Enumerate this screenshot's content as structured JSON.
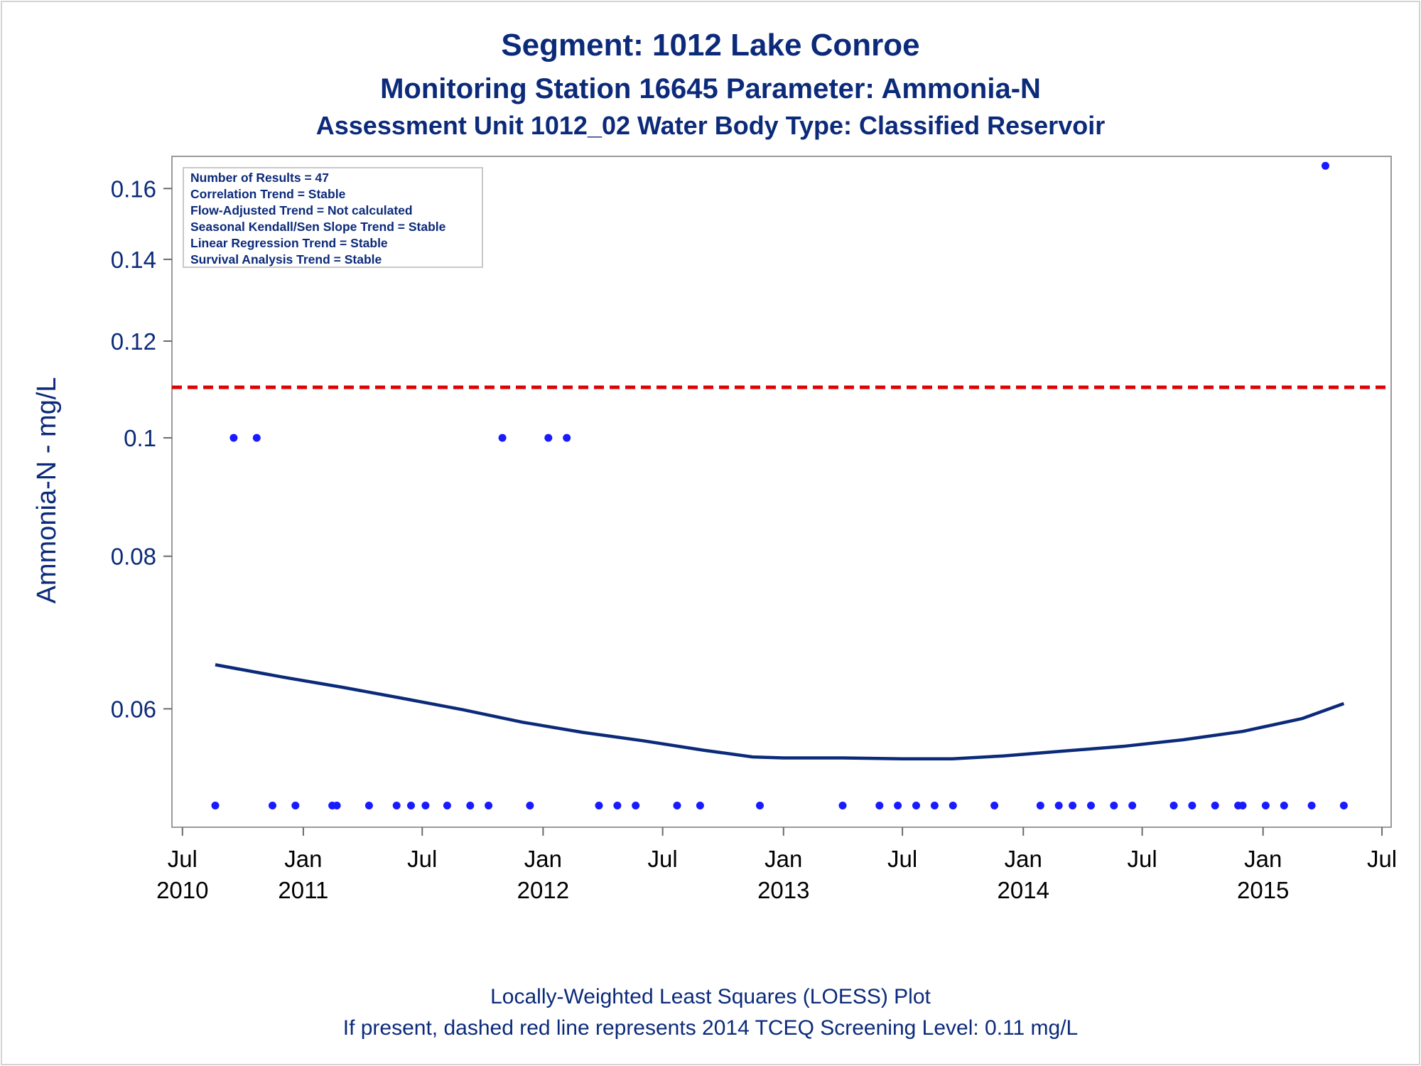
{
  "chart_data": {
    "type": "scatter",
    "title": "Segment: 1012  Lake Conroe",
    "subtitle_1": "Monitoring Station 16645 Parameter: Ammonia-N",
    "subtitle_2": "Assessment Unit 1012_02   Water Body Type: Classified Reservoir",
    "ylabel": "Ammonia-N - mg/L",
    "xlabel": "",
    "y_scale": "log",
    "ylim": [
      0.048,
      0.17
    ],
    "xlim": [
      "2010-06-15",
      "2015-07-15"
    ],
    "y_ticks": [
      {
        "value": 0.06,
        "label": "0.06"
      },
      {
        "value": 0.08,
        "label": "0.08"
      },
      {
        "value": 0.1,
        "label": "0.1"
      },
      {
        "value": 0.12,
        "label": "0.12"
      },
      {
        "value": 0.14,
        "label": "0.14"
      },
      {
        "value": 0.16,
        "label": "0.16"
      }
    ],
    "x_ticks": [
      {
        "date": "2010-07-01",
        "line1": "Jul",
        "line2": "2010"
      },
      {
        "date": "2011-01-01",
        "line1": "Jan",
        "line2": "2011"
      },
      {
        "date": "2011-07-01",
        "line1": "Jul",
        "line2": ""
      },
      {
        "date": "2012-01-01",
        "line1": "Jan",
        "line2": "2012"
      },
      {
        "date": "2012-07-01",
        "line1": "Jul",
        "line2": ""
      },
      {
        "date": "2013-01-01",
        "line1": "Jan",
        "line2": "2013"
      },
      {
        "date": "2013-07-01",
        "line1": "Jul",
        "line2": ""
      },
      {
        "date": "2014-01-01",
        "line1": "Jan",
        "line2": "2014"
      },
      {
        "date": "2014-07-01",
        "line1": "Jul",
        "line2": ""
      },
      {
        "date": "2015-01-01",
        "line1": "Jan",
        "line2": "2015"
      },
      {
        "date": "2015-07-01",
        "line1": "Jul",
        "line2": ""
      }
    ],
    "grid": false,
    "stats_box_position": "top-left",
    "stats": [
      "Number of Results = 47",
      "Correlation Trend = Stable",
      "Flow-Adjusted Trend = Not calculated",
      "Seasonal Kendall/Sen Slope Trend = Stable",
      "Linear Regression Trend = Stable",
      "Survival Analysis Trend = Stable"
    ],
    "screening_level": {
      "value": 0.11,
      "color": "#e00000",
      "style": "dashed"
    },
    "point_color": "#1a1aff",
    "loess_color": "#0b2a7a",
    "points": [
      {
        "x": "2010-08-20",
        "y": 0.05
      },
      {
        "x": "2010-09-17",
        "y": 0.1
      },
      {
        "x": "2010-10-22",
        "y": 0.1
      },
      {
        "x": "2010-11-15",
        "y": 0.05
      },
      {
        "x": "2010-12-20",
        "y": 0.05
      },
      {
        "x": "2011-02-14",
        "y": 0.05
      },
      {
        "x": "2011-02-21",
        "y": 0.05
      },
      {
        "x": "2011-04-11",
        "y": 0.05
      },
      {
        "x": "2011-05-23",
        "y": 0.05
      },
      {
        "x": "2011-06-14",
        "y": 0.05
      },
      {
        "x": "2011-07-06",
        "y": 0.05
      },
      {
        "x": "2011-08-08",
        "y": 0.05
      },
      {
        "x": "2011-09-12",
        "y": 0.05
      },
      {
        "x": "2011-10-10",
        "y": 0.05
      },
      {
        "x": "2011-10-31",
        "y": 0.1
      },
      {
        "x": "2011-12-12",
        "y": 0.05
      },
      {
        "x": "2012-01-09",
        "y": 0.1
      },
      {
        "x": "2012-02-06",
        "y": 0.1
      },
      {
        "x": "2012-03-26",
        "y": 0.05
      },
      {
        "x": "2012-04-23",
        "y": 0.05
      },
      {
        "x": "2012-05-21",
        "y": 0.05
      },
      {
        "x": "2012-07-23",
        "y": 0.05
      },
      {
        "x": "2012-08-27",
        "y": 0.05
      },
      {
        "x": "2012-11-26",
        "y": 0.05
      },
      {
        "x": "2013-04-01",
        "y": 0.05
      },
      {
        "x": "2013-05-27",
        "y": 0.05
      },
      {
        "x": "2013-06-24",
        "y": 0.05
      },
      {
        "x": "2013-07-22",
        "y": 0.05
      },
      {
        "x": "2013-08-19",
        "y": 0.05
      },
      {
        "x": "2013-09-16",
        "y": 0.05
      },
      {
        "x": "2013-11-18",
        "y": 0.05
      },
      {
        "x": "2014-01-27",
        "y": 0.05
      },
      {
        "x": "2014-02-24",
        "y": 0.05
      },
      {
        "x": "2014-03-17",
        "y": 0.05
      },
      {
        "x": "2014-04-14",
        "y": 0.05
      },
      {
        "x": "2014-05-19",
        "y": 0.05
      },
      {
        "x": "2014-06-16",
        "y": 0.05
      },
      {
        "x": "2014-08-18",
        "y": 0.05
      },
      {
        "x": "2014-09-15",
        "y": 0.05
      },
      {
        "x": "2014-10-20",
        "y": 0.05
      },
      {
        "x": "2014-11-24",
        "y": 0.05
      },
      {
        "x": "2014-12-01",
        "y": 0.05
      },
      {
        "x": "2015-01-05",
        "y": 0.05
      },
      {
        "x": "2015-02-02",
        "y": 0.05
      },
      {
        "x": "2015-03-16",
        "y": 0.05
      },
      {
        "x": "2015-04-06",
        "y": 0.167
      },
      {
        "x": "2015-05-04",
        "y": 0.05
      }
    ],
    "loess_curve": [
      {
        "x": "2010-08-20",
        "y": 0.0652
      },
      {
        "x": "2010-12-01",
        "y": 0.0637
      },
      {
        "x": "2011-03-01",
        "y": 0.0625
      },
      {
        "x": "2011-06-01",
        "y": 0.0612
      },
      {
        "x": "2011-09-01",
        "y": 0.0599
      },
      {
        "x": "2011-12-01",
        "y": 0.0585
      },
      {
        "x": "2012-03-01",
        "y": 0.0574
      },
      {
        "x": "2012-06-01",
        "y": 0.0565
      },
      {
        "x": "2012-09-01",
        "y": 0.0555
      },
      {
        "x": "2012-11-15",
        "y": 0.0548
      },
      {
        "x": "2013-01-01",
        "y": 0.0547
      },
      {
        "x": "2013-04-01",
        "y": 0.0547
      },
      {
        "x": "2013-07-01",
        "y": 0.0546
      },
      {
        "x": "2013-09-15",
        "y": 0.0546
      },
      {
        "x": "2013-12-01",
        "y": 0.0549
      },
      {
        "x": "2014-03-01",
        "y": 0.0554
      },
      {
        "x": "2014-06-01",
        "y": 0.0559
      },
      {
        "x": "2014-09-01",
        "y": 0.0566
      },
      {
        "x": "2014-12-01",
        "y": 0.0575
      },
      {
        "x": "2015-03-01",
        "y": 0.0589
      },
      {
        "x": "2015-05-04",
        "y": 0.0606
      }
    ]
  },
  "footer": {
    "line1": "Locally-Weighted Least Squares (LOESS) Plot",
    "line2": "If present, dashed red line represents 2014 TCEQ Screening Level: 0.11 mg/L"
  }
}
